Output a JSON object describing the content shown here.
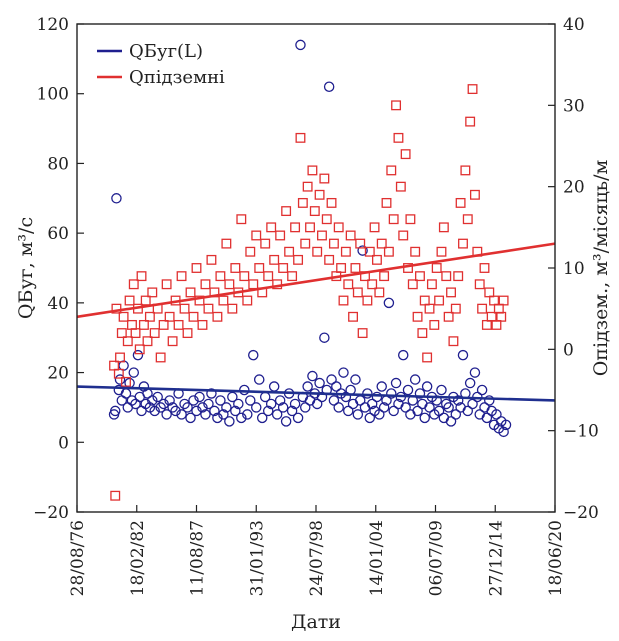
{
  "chart_data": {
    "type": "scatter",
    "xlabel": "Дати",
    "ylabel_left": "QБуг, м³/с",
    "ylabel_right": "Опідзем., м³/місяць/м",
    "grid": false,
    "legend_position": "top-left",
    "x_ticks": [
      "28/08/76",
      "18/02/82",
      "11/08/87",
      "31/01/93",
      "24/07/98",
      "14/01/04",
      "06/07/09",
      "27/12/14",
      "18/06/20"
    ],
    "xlim_index": [
      0,
      8
    ],
    "left_axis": {
      "ylim": [
        -20,
        120
      ],
      "ticks": [
        -20,
        0,
        20,
        40,
        60,
        80,
        100,
        120
      ]
    },
    "right_axis": {
      "ylim": [
        -20,
        40
      ],
      "ticks": [
        -20,
        -10,
        0,
        10,
        20,
        30,
        40
      ]
    },
    "series": [
      {
        "name": "QБуг(L)",
        "axis": "left",
        "marker": "circle",
        "color": "#1f1f8f",
        "points": [
          [
            0.62,
            8
          ],
          [
            0.64,
            9
          ],
          [
            0.66,
            70
          ],
          [
            0.7,
            15
          ],
          [
            0.72,
            18
          ],
          [
            0.75,
            12
          ],
          [
            0.78,
            22
          ],
          [
            0.82,
            14
          ],
          [
            0.85,
            10
          ],
          [
            0.88,
            17
          ],
          [
            0.92,
            12
          ],
          [
            0.95,
            20
          ],
          [
            0.98,
            11
          ],
          [
            1.02,
            25
          ],
          [
            1.05,
            13
          ],
          [
            1.08,
            9
          ],
          [
            1.12,
            16
          ],
          [
            1.15,
            11
          ],
          [
            1.18,
            14
          ],
          [
            1.22,
            10
          ],
          [
            1.26,
            12
          ],
          [
            1.3,
            9
          ],
          [
            1.35,
            13
          ],
          [
            1.4,
            10
          ],
          [
            1.45,
            11
          ],
          [
            1.5,
            8
          ],
          [
            1.55,
            12
          ],
          [
            1.6,
            10
          ],
          [
            1.65,
            9
          ],
          [
            1.7,
            14
          ],
          [
            1.75,
            8
          ],
          [
            1.8,
            11
          ],
          [
            1.85,
            10
          ],
          [
            1.9,
            7
          ],
          [
            1.95,
            12
          ],
          [
            2.0,
            9
          ],
          [
            2.05,
            13
          ],
          [
            2.1,
            10
          ],
          [
            2.15,
            8
          ],
          [
            2.2,
            11
          ],
          [
            2.25,
            14
          ],
          [
            2.3,
            9
          ],
          [
            2.35,
            7
          ],
          [
            2.4,
            12
          ],
          [
            2.45,
            8
          ],
          [
            2.5,
            10
          ],
          [
            2.55,
            6
          ],
          [
            2.6,
            13
          ],
          [
            2.65,
            9
          ],
          [
            2.7,
            11
          ],
          [
            2.75,
            7
          ],
          [
            2.8,
            15
          ],
          [
            2.85,
            8
          ],
          [
            2.9,
            12
          ],
          [
            2.95,
            25
          ],
          [
            3.0,
            10
          ],
          [
            3.05,
            18
          ],
          [
            3.1,
            7
          ],
          [
            3.15,
            13
          ],
          [
            3.2,
            9
          ],
          [
            3.25,
            11
          ],
          [
            3.3,
            16
          ],
          [
            3.35,
            8
          ],
          [
            3.4,
            12
          ],
          [
            3.45,
            10
          ],
          [
            3.5,
            6
          ],
          [
            3.55,
            14
          ],
          [
            3.6,
            9
          ],
          [
            3.65,
            11
          ],
          [
            3.7,
            7
          ],
          [
            3.74,
            114
          ],
          [
            3.78,
            13
          ],
          [
            3.82,
            10
          ],
          [
            3.86,
            16
          ],
          [
            3.9,
            12
          ],
          [
            3.94,
            19
          ],
          [
            3.98,
            14
          ],
          [
            4.02,
            11
          ],
          [
            4.06,
            17
          ],
          [
            4.1,
            13
          ],
          [
            4.14,
            30
          ],
          [
            4.18,
            15
          ],
          [
            4.22,
            102
          ],
          [
            4.26,
            18
          ],
          [
            4.3,
            12
          ],
          [
            4.34,
            16
          ],
          [
            4.38,
            10
          ],
          [
            4.42,
            14
          ],
          [
            4.46,
            20
          ],
          [
            4.5,
            13
          ],
          [
            4.54,
            9
          ],
          [
            4.58,
            15
          ],
          [
            4.62,
            11
          ],
          [
            4.66,
            18
          ],
          [
            4.7,
            8
          ],
          [
            4.74,
            12
          ],
          [
            4.78,
            55
          ],
          [
            4.82,
            10
          ],
          [
            4.86,
            14
          ],
          [
            4.9,
            7
          ],
          [
            4.94,
            11
          ],
          [
            4.98,
            9
          ],
          [
            5.02,
            13
          ],
          [
            5.06,
            8
          ],
          [
            5.1,
            16
          ],
          [
            5.14,
            10
          ],
          [
            5.18,
            12
          ],
          [
            5.22,
            40
          ],
          [
            5.26,
            14
          ],
          [
            5.3,
            9
          ],
          [
            5.34,
            17
          ],
          [
            5.38,
            11
          ],
          [
            5.42,
            13
          ],
          [
            5.46,
            25
          ],
          [
            5.5,
            10
          ],
          [
            5.54,
            15
          ],
          [
            5.58,
            8
          ],
          [
            5.62,
            12
          ],
          [
            5.66,
            18
          ],
          [
            5.7,
            9
          ],
          [
            5.74,
            14
          ],
          [
            5.78,
            11
          ],
          [
            5.82,
            7
          ],
          [
            5.86,
            16
          ],
          [
            5.9,
            10
          ],
          [
            5.94,
            13
          ],
          [
            5.98,
            8
          ],
          [
            6.02,
            12
          ],
          [
            6.06,
            9
          ],
          [
            6.1,
            15
          ],
          [
            6.14,
            7
          ],
          [
            6.18,
            11
          ],
          [
            6.22,
            10
          ],
          [
            6.26,
            6
          ],
          [
            6.3,
            13
          ],
          [
            6.34,
            8
          ],
          [
            6.38,
            12
          ],
          [
            6.42,
            10
          ],
          [
            6.46,
            25
          ],
          [
            6.5,
            14
          ],
          [
            6.54,
            9
          ],
          [
            6.58,
            17
          ],
          [
            6.62,
            11
          ],
          [
            6.66,
            20
          ],
          [
            6.7,
            13
          ],
          [
            6.74,
            8
          ],
          [
            6.78,
            15
          ],
          [
            6.82,
            10
          ],
          [
            6.86,
            7
          ],
          [
            6.9,
            12
          ],
          [
            6.94,
            9
          ],
          [
            6.98,
            5
          ],
          [
            7.02,
            8
          ],
          [
            7.06,
            4
          ],
          [
            7.1,
            6
          ],
          [
            7.14,
            3
          ],
          [
            7.18,
            5
          ]
        ]
      },
      {
        "name": "Qпідземні",
        "axis": "right",
        "marker": "square",
        "color": "#e03030",
        "points": [
          [
            0.62,
            -2
          ],
          [
            0.64,
            -18
          ],
          [
            0.66,
            5
          ],
          [
            0.7,
            -3
          ],
          [
            0.72,
            -1
          ],
          [
            0.75,
            2
          ],
          [
            0.78,
            4
          ],
          [
            0.82,
            -4
          ],
          [
            0.85,
            1
          ],
          [
            0.88,
            6
          ],
          [
            0.92,
            3
          ],
          [
            0.95,
            8
          ],
          [
            0.98,
            2
          ],
          [
            1.02,
            5
          ],
          [
            1.05,
            0
          ],
          [
            1.08,
            9
          ],
          [
            1.12,
            3
          ],
          [
            1.15,
            6
          ],
          [
            1.18,
            1
          ],
          [
            1.22,
            4
          ],
          [
            1.26,
            7
          ],
          [
            1.3,
            2
          ],
          [
            1.35,
            5
          ],
          [
            1.4,
            -1
          ],
          [
            1.45,
            3
          ],
          [
            1.5,
            8
          ],
          [
            1.55,
            4
          ],
          [
            1.6,
            1
          ],
          [
            1.65,
            6
          ],
          [
            1.7,
            3
          ],
          [
            1.75,
            9
          ],
          [
            1.8,
            5
          ],
          [
            1.85,
            2
          ],
          [
            1.9,
            7
          ],
          [
            1.95,
            4
          ],
          [
            2.0,
            10
          ],
          [
            2.05,
            6
          ],
          [
            2.1,
            3
          ],
          [
            2.15,
            8
          ],
          [
            2.2,
            5
          ],
          [
            2.25,
            11
          ],
          [
            2.3,
            7
          ],
          [
            2.35,
            4
          ],
          [
            2.4,
            9
          ],
          [
            2.45,
            6
          ],
          [
            2.5,
            13
          ],
          [
            2.55,
            8
          ],
          [
            2.6,
            5
          ],
          [
            2.65,
            10
          ],
          [
            2.7,
            7
          ],
          [
            2.75,
            16
          ],
          [
            2.8,
            9
          ],
          [
            2.85,
            6
          ],
          [
            2.9,
            12
          ],
          [
            2.95,
            8
          ],
          [
            3.0,
            14
          ],
          [
            3.05,
            10
          ],
          [
            3.1,
            7
          ],
          [
            3.15,
            13
          ],
          [
            3.2,
            9
          ],
          [
            3.25,
            15
          ],
          [
            3.3,
            11
          ],
          [
            3.35,
            8
          ],
          [
            3.4,
            14
          ],
          [
            3.45,
            10
          ],
          [
            3.5,
            17
          ],
          [
            3.55,
            12
          ],
          [
            3.6,
            9
          ],
          [
            3.65,
            15
          ],
          [
            3.7,
            11
          ],
          [
            3.74,
            26
          ],
          [
            3.78,
            18
          ],
          [
            3.82,
            13
          ],
          [
            3.86,
            20
          ],
          [
            3.9,
            15
          ],
          [
            3.94,
            22
          ],
          [
            3.98,
            17
          ],
          [
            4.02,
            12
          ],
          [
            4.06,
            19
          ],
          [
            4.1,
            14
          ],
          [
            4.14,
            21
          ],
          [
            4.18,
            16
          ],
          [
            4.22,
            11
          ],
          [
            4.26,
            18
          ],
          [
            4.3,
            13
          ],
          [
            4.34,
            9
          ],
          [
            4.38,
            15
          ],
          [
            4.42,
            10
          ],
          [
            4.46,
            6
          ],
          [
            4.5,
            12
          ],
          [
            4.54,
            8
          ],
          [
            4.58,
            14
          ],
          [
            4.62,
            4
          ],
          [
            4.66,
            10
          ],
          [
            4.7,
            7
          ],
          [
            4.74,
            13
          ],
          [
            4.78,
            2
          ],
          [
            4.82,
            9
          ],
          [
            4.86,
            6
          ],
          [
            4.9,
            12
          ],
          [
            4.94,
            8
          ],
          [
            4.98,
            15
          ],
          [
            5.02,
            11
          ],
          [
            5.06,
            7
          ],
          [
            5.1,
            13
          ],
          [
            5.14,
            9
          ],
          [
            5.18,
            18
          ],
          [
            5.22,
            12
          ],
          [
            5.26,
            22
          ],
          [
            5.3,
            16
          ],
          [
            5.34,
            30
          ],
          [
            5.38,
            26
          ],
          [
            5.42,
            20
          ],
          [
            5.46,
            14
          ],
          [
            5.5,
            24
          ],
          [
            5.54,
            10
          ],
          [
            5.58,
            16
          ],
          [
            5.62,
            8
          ],
          [
            5.66,
            12
          ],
          [
            5.7,
            4
          ],
          [
            5.74,
            9
          ],
          [
            5.78,
            2
          ],
          [
            5.82,
            6
          ],
          [
            5.86,
            -1
          ],
          [
            5.9,
            5
          ],
          [
            5.94,
            8
          ],
          [
            5.98,
            3
          ],
          [
            6.02,
            10
          ],
          [
            6.06,
            6
          ],
          [
            6.1,
            12
          ],
          [
            6.14,
            15
          ],
          [
            6.18,
            9
          ],
          [
            6.22,
            4
          ],
          [
            6.26,
            7
          ],
          [
            6.3,
            1
          ],
          [
            6.34,
            5
          ],
          [
            6.38,
            9
          ],
          [
            6.42,
            18
          ],
          [
            6.46,
            13
          ],
          [
            6.5,
            22
          ],
          [
            6.54,
            16
          ],
          [
            6.58,
            28
          ],
          [
            6.62,
            32
          ],
          [
            6.66,
            19
          ],
          [
            6.7,
            12
          ],
          [
            6.74,
            8
          ],
          [
            6.78,
            5
          ],
          [
            6.82,
            10
          ],
          [
            6.86,
            3
          ],
          [
            6.9,
            7
          ],
          [
            6.94,
            4
          ],
          [
            6.98,
            6
          ],
          [
            7.02,
            3
          ],
          [
            7.06,
            5
          ],
          [
            7.1,
            4
          ],
          [
            7.14,
            6
          ]
        ]
      }
    ],
    "trendlines": [
      {
        "series": "QБуг(L)",
        "axis": "left",
        "color": "#1f2f8f",
        "from": [
          0,
          16
        ],
        "to": [
          8,
          12
        ]
      },
      {
        "series": "Qпідземні",
        "axis": "right",
        "color": "#e03030",
        "from": [
          0,
          4
        ],
        "to": [
          8,
          13
        ]
      }
    ]
  }
}
